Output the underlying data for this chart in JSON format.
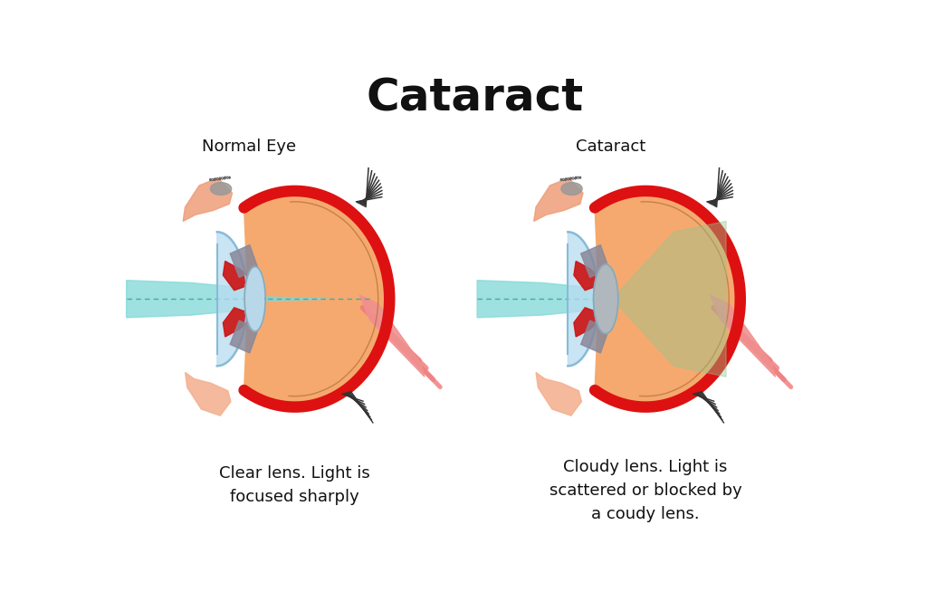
{
  "title": "Cataract",
  "title_fontsize": 36,
  "title_fontweight": "bold",
  "bg_color": "#ffffff",
  "left_label": "Normal Eye",
  "right_label": "Cataract",
  "left_caption": "Clear lens. Light is\nfocused sharply",
  "right_caption": "Cloudy lens. Light is\nscattered or blocked by\na coudy lens.",
  "label_fontsize": 13,
  "caption_fontsize": 13,
  "sclera_color": "#f5a96e",
  "choroid_color": "#dd1111",
  "cornea_color": "#b8dcf0",
  "lens_normal_color": "#b8d8ea",
  "lens_cataract_color": "#b0b8be",
  "light_color": "#7fd8d8",
  "scattered_color": "#90c890",
  "optic_nerve_color": "#f08080",
  "ciliary_color": "#888899",
  "skin_color": "#f4b090",
  "red_iris_color": "#cc1111",
  "lash_color": "#333333",
  "blob_color": "#999999"
}
